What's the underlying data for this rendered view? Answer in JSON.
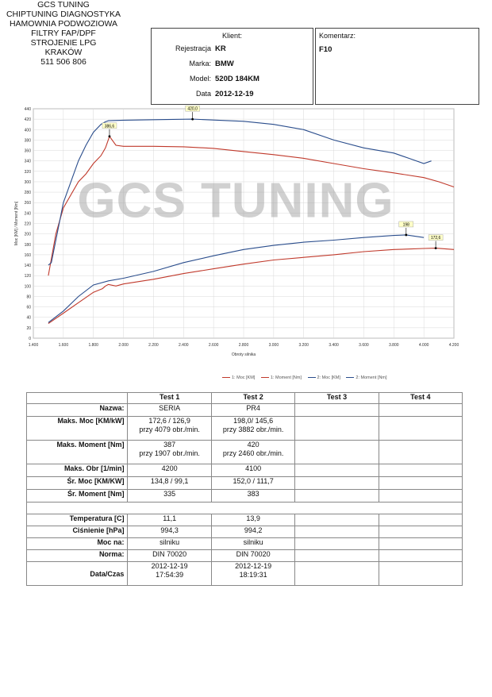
{
  "company": {
    "lines": [
      "GCS TUNING",
      "CHIPTUNING DIAGNOSTYKA",
      "HAMOWNIA PODWOZIOWA",
      "FILTRY FAP/DPF",
      "STROJENIE LPG",
      "KRAKÓW",
      "511 506 806"
    ]
  },
  "client": {
    "caption": "Klient:",
    "fields": [
      {
        "label": "Rejestracja",
        "value": "KR"
      },
      {
        "label": "Marka:",
        "value": "BMW"
      },
      {
        "label": "Model:",
        "value": "520D 184KM"
      },
      {
        "label": "Data",
        "value": "2012-12-19"
      }
    ]
  },
  "comment": {
    "caption": "Komentarz:",
    "value": "F10"
  },
  "watermark": "GCS TUNING",
  "chart_data": {
    "type": "line",
    "xlabel": "Obroty silnika",
    "ylabel": "Moc [KM] / Moment [Nm]",
    "xlim": [
      1400,
      4200
    ],
    "ylim": [
      0,
      440
    ],
    "xticks": [
      "1.400",
      "1.600",
      "1.800",
      "2.000",
      "2.200",
      "2.400",
      "2.600",
      "2.800",
      "3.000",
      "3.200",
      "3.400",
      "3.600",
      "3.800",
      "4.000",
      "4.200"
    ],
    "yticks": [
      "0",
      "20",
      "40",
      "60",
      "80",
      "100",
      "120",
      "140",
      "160",
      "180",
      "200",
      "220",
      "240",
      "260",
      "280",
      "300",
      "320",
      "340",
      "360",
      "380",
      "400",
      "420",
      "440"
    ],
    "series": [
      {
        "name": "1: Moc [KM]",
        "color": "#c0392b",
        "x": [
          1500,
          1600,
          1700,
          1800,
          1860,
          1880,
          1900,
          1950,
          2000,
          2200,
          2400,
          2600,
          2800,
          3000,
          3200,
          3400,
          3600,
          3800,
          3900,
          4000,
          4079,
          4200
        ],
        "values": [
          28,
          48,
          68,
          88,
          95,
          100,
          103,
          100,
          104,
          113,
          124,
          133,
          142,
          150,
          155,
          160,
          166,
          170,
          171,
          172,
          172.6,
          170
        ]
      },
      {
        "name": "1: Moment [Nm]",
        "color": "#c0392b",
        "x": [
          1500,
          1550,
          1600,
          1700,
          1750,
          1800,
          1850,
          1880,
          1907,
          1950,
          2000,
          2200,
          2400,
          2600,
          2800,
          3000,
          3200,
          3400,
          3600,
          3800,
          4000,
          4100,
          4200
        ],
        "values": [
          120,
          200,
          250,
          300,
          315,
          335,
          350,
          365,
          387,
          370,
          368,
          368,
          367,
          364,
          358,
          352,
          345,
          335,
          325,
          317,
          308,
          300,
          290
        ]
      },
      {
        "name": "2: Moc [KM]",
        "color": "#2a4d8c",
        "x": [
          1500,
          1600,
          1700,
          1800,
          1900,
          2000,
          2200,
          2400,
          2600,
          2800,
          3000,
          3200,
          3400,
          3600,
          3800,
          3882,
          4000
        ],
        "values": [
          30,
          52,
          80,
          102,
          110,
          115,
          128,
          145,
          158,
          170,
          178,
          184,
          188,
          193,
          197,
          198,
          193
        ]
      },
      {
        "name": "2: Moment [Nm]",
        "color": "#2a4d8c",
        "x": [
          1500,
          1520,
          1600,
          1700,
          1750,
          1800,
          1850,
          1880,
          1900,
          2000,
          2200,
          2460,
          2800,
          3000,
          3200,
          3400,
          3600,
          3800,
          3900,
          4000,
          4050
        ],
        "values": [
          140,
          145,
          260,
          340,
          370,
          395,
          410,
          415,
          417,
          418,
          419,
          420,
          416,
          410,
          400,
          380,
          365,
          355,
          345,
          335,
          340
        ]
      }
    ],
    "annotations": [
      {
        "x": 1907,
        "y": 387,
        "text": "386,6"
      },
      {
        "x": 2460,
        "y": 420,
        "text": "420,0"
      },
      {
        "x": 3882,
        "y": 198,
        "text": "198"
      },
      {
        "x": 4079,
        "y": 172.6,
        "text": "172,6"
      }
    ],
    "legend": [
      "1: Moc [KM]",
      "1: Moment [Nm]",
      "2: Moc [KM]",
      "2: Moment [Nm]"
    ]
  },
  "table": {
    "headers": [
      "Test 1",
      "Test 2",
      "Test 3",
      "Test 4"
    ],
    "rows": [
      {
        "label": "Nazwa:",
        "t1": "SERIA",
        "t2": "PR4"
      },
      {
        "label": "Maks. Moc [KM/kW]",
        "t1a": "172,6 / 126,9",
        "t1b": "przy 4079 obr./min.",
        "t2a": "198,0/ 145,6",
        "t2b": "przy 3882 obr./min."
      },
      {
        "label": "Maks. Moment [Nm]",
        "t1a": "387",
        "t1b": "przy 1907 obr./min.",
        "t2a": "420",
        "t2b": "przy 2460 obr./min."
      },
      {
        "label": "Maks. Obr [1/min]",
        "t1": "4200",
        "t2": "4100"
      },
      {
        "label": "Śr. Moc [KM/KW]",
        "t1": "134,8 / 99,1",
        "t2": "152,0 / 111,7"
      },
      {
        "label": "Śr. Moment [Nm]",
        "t1": "335",
        "t2": "383"
      },
      {
        "label": "Temperatura [C]",
        "t1": "11,1",
        "t2": "13,9"
      },
      {
        "label": "Ciśnienie [hPa]",
        "t1": "994,3",
        "t2": "994,2"
      },
      {
        "label": "Moc na:",
        "t1": "silniku",
        "t2": "silniku"
      },
      {
        "label": "Norma:",
        "t1": "DIN 70020",
        "t2": "DIN 70020"
      },
      {
        "label": "Data/Czas",
        "t1a": "2012-12-19",
        "t1b": "17:54:39",
        "t2a": "2012-12-19",
        "t2b": "18:19:31"
      }
    ]
  }
}
